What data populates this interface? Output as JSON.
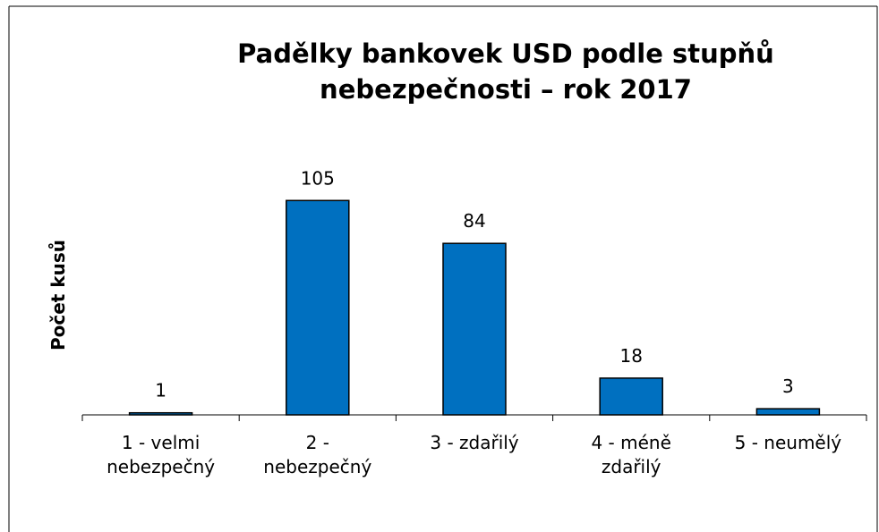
{
  "chart_data": {
    "type": "bar",
    "title": "Padělky bankovek USD podle stupňů nebezpečnosti – rok 2017",
    "y_label": "Počet kusů",
    "categories": [
      "1 - velmi nebezpečný",
      "2 - nebezpečný",
      "3 - zdařilý",
      "4 - méně zdařilý",
      "5 - neumělý"
    ],
    "values": [
      1,
      105,
      84,
      18,
      3
    ],
    "color": "#0070c0",
    "ylim": [
      0,
      120
    ]
  }
}
